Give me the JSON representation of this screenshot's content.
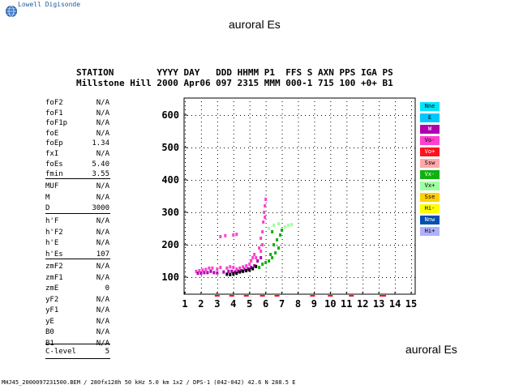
{
  "logo": {
    "text": "Lowell Digisonde"
  },
  "title_top": "auroral Es",
  "title_bottom": "auroral Es",
  "station_header": {
    "labels": "STATION        YYYY DAY   DDD HHMM P1  FFS S AXN PPS IGA PS",
    "values": "Millstone Hill 2000 Apr06 097 2315 MMM 000-1 715 100 +0+ B1"
  },
  "params_group1": [
    {
      "name": "foF2",
      "value": "N/A"
    },
    {
      "name": "foF1",
      "value": "N/A"
    },
    {
      "name": "foF1p",
      "value": "N/A"
    },
    {
      "name": "foE",
      "value": "N/A"
    },
    {
      "name": "foEp",
      "value": "1.34"
    },
    {
      "name": "fxI",
      "value": "N/A"
    },
    {
      "name": "foEs",
      "value": "5.40"
    },
    {
      "name": "fmin",
      "value": "3.55"
    }
  ],
  "params_group2": [
    {
      "name": "MUF",
      "value": "N/A"
    },
    {
      "name": "M",
      "value": "N/A"
    },
    {
      "name": "D",
      "value": "3000"
    }
  ],
  "params_group3": [
    {
      "name": "h'F",
      "value": "N/A"
    },
    {
      "name": "h'F2",
      "value": "N/A"
    },
    {
      "name": "h'E",
      "value": "N/A"
    },
    {
      "name": "h'Es",
      "value": "107"
    }
  ],
  "params_group4": [
    {
      "name": "zmF2",
      "value": "N/A"
    },
    {
      "name": "zmF1",
      "value": "N/A"
    },
    {
      "name": "zmE",
      "value": "0"
    },
    {
      "name": "yF2",
      "value": "N/A"
    },
    {
      "name": "yF1",
      "value": "N/A"
    },
    {
      "name": "yE",
      "value": "N/A"
    },
    {
      "name": "B0",
      "value": "N/A"
    },
    {
      "name": "B1",
      "value": "N/A"
    }
  ],
  "params_group5": [
    {
      "name": "C-level",
      "value": "5"
    }
  ],
  "legend": [
    {
      "label": "Nne",
      "color": "#00e5ff"
    },
    {
      "label": "E",
      "color": "#00c8ff"
    },
    {
      "label": "W",
      "color": "#b000b0"
    },
    {
      "label": "Vo-",
      "color": "#ff40d0"
    },
    {
      "label": "Vo+",
      "color": "#ff1020"
    },
    {
      "label": "Ssw",
      "color": "#ffa8a8"
    },
    {
      "label": "Vx-",
      "color": "#10b010"
    },
    {
      "label": "Vx+",
      "color": "#a0ffa0"
    },
    {
      "label": "Sse",
      "color": "#ffd000"
    },
    {
      "label": "Hi-",
      "color": "#ffff00"
    },
    {
      "label": "Nnw",
      "color": "#0050b0"
    },
    {
      "label": "Hi+",
      "color": "#b0b0ff"
    }
  ],
  "footer": "MHJ45_2000097231500.BEM / 280fx128h 50 kHz 5.0 km 1x2 / DPS-1 (042-042) 42.6 N 288.5 E",
  "chart_data": {
    "type": "scatter",
    "x_ticks": [
      "1",
      "2",
      "3",
      "4",
      "5",
      "6",
      "7",
      "8",
      "9",
      "10",
      "11",
      "12",
      "13",
      "14",
      "15"
    ],
    "y_ticks": [
      "100",
      "200",
      "300",
      "400",
      "500",
      "600"
    ],
    "xlim": [
      1,
      15
    ],
    "ylim": [
      50,
      650
    ],
    "grid": true,
    "series": [
      {
        "color": "#ff40d0",
        "points": [
          [
            1.7,
            118
          ],
          [
            1.9,
            120
          ],
          [
            2.1,
            122
          ],
          [
            2.3,
            124
          ],
          [
            2.5,
            128
          ],
          [
            2.7,
            128
          ],
          [
            3.0,
            125
          ],
          [
            3.2,
            130
          ],
          [
            3.6,
            128
          ],
          [
            3.8,
            132
          ],
          [
            4.0,
            130
          ],
          [
            4.2,
            125
          ],
          [
            4.4,
            128
          ],
          [
            4.6,
            132
          ],
          [
            4.8,
            135
          ],
          [
            5.0,
            140
          ],
          [
            5.1,
            150
          ],
          [
            5.2,
            160
          ],
          [
            5.3,
            170
          ],
          [
            5.4,
            160
          ],
          [
            5.6,
            190
          ],
          [
            5.7,
            220
          ],
          [
            5.8,
            240
          ],
          [
            5.85,
            270
          ],
          [
            5.9,
            300
          ],
          [
            5.95,
            320
          ],
          [
            6.0,
            340
          ],
          [
            5.95,
            285
          ],
          [
            5.8,
            200
          ],
          [
            5.7,
            180
          ],
          [
            3.2,
            225
          ],
          [
            3.5,
            228
          ],
          [
            4.0,
            230
          ],
          [
            4.2,
            232
          ]
        ]
      },
      {
        "color": "#b000b0",
        "points": [
          [
            1.8,
            112
          ],
          [
            2.0,
            112
          ],
          [
            2.2,
            114
          ],
          [
            2.4,
            114
          ],
          [
            2.6,
            118
          ],
          [
            2.8,
            114
          ],
          [
            3.0,
            113
          ],
          [
            3.4,
            116
          ],
          [
            3.7,
            118
          ],
          [
            3.9,
            118
          ],
          [
            4.1,
            116
          ],
          [
            4.3,
            118
          ],
          [
            4.5,
            120
          ],
          [
            4.7,
            124
          ],
          [
            4.9,
            126
          ],
          [
            5.1,
            130
          ],
          [
            5.3,
            135
          ],
          [
            5.5,
            150
          ],
          [
            5.7,
            160
          ]
        ]
      },
      {
        "color": "#000000",
        "points": [
          [
            3.6,
            109
          ],
          [
            3.8,
            108
          ],
          [
            4.0,
            110
          ],
          [
            4.2,
            112
          ],
          [
            4.4,
            116
          ],
          [
            4.6,
            118
          ],
          [
            4.8,
            120
          ],
          [
            5.0,
            122
          ],
          [
            5.2,
            126
          ],
          [
            5.4,
            133
          ]
        ]
      },
      {
        "color": "#10b010",
        "points": [
          [
            5.6,
            130
          ],
          [
            5.8,
            140
          ],
          [
            6.0,
            145
          ],
          [
            6.2,
            150
          ],
          [
            6.4,
            160
          ],
          [
            6.6,
            175
          ],
          [
            6.8,
            190
          ],
          [
            6.3,
            170
          ],
          [
            6.5,
            200
          ],
          [
            6.7,
            215
          ],
          [
            6.9,
            230
          ],
          [
            6.4,
            240
          ],
          [
            7.0,
            245
          ]
        ]
      },
      {
        "color": "#a0ffa0",
        "points": [
          [
            6.5,
            260
          ],
          [
            6.8,
            265
          ],
          [
            7.2,
            255
          ],
          [
            7.4,
            260
          ],
          [
            6.2,
            250
          ],
          [
            7.6,
            262
          ]
        ]
      },
      {
        "color": "#ff1020",
        "points": [
          [
            3.0,
            80
          ],
          [
            3.9,
            80
          ],
          [
            4.8,
            80
          ],
          [
            5.8,
            80
          ],
          [
            6.7,
            80
          ],
          [
            8.9,
            80
          ],
          [
            10.0,
            80
          ],
          [
            11.3,
            80
          ],
          [
            13.2,
            80
          ],
          [
            13.3,
            80
          ]
        ]
      }
    ]
  }
}
